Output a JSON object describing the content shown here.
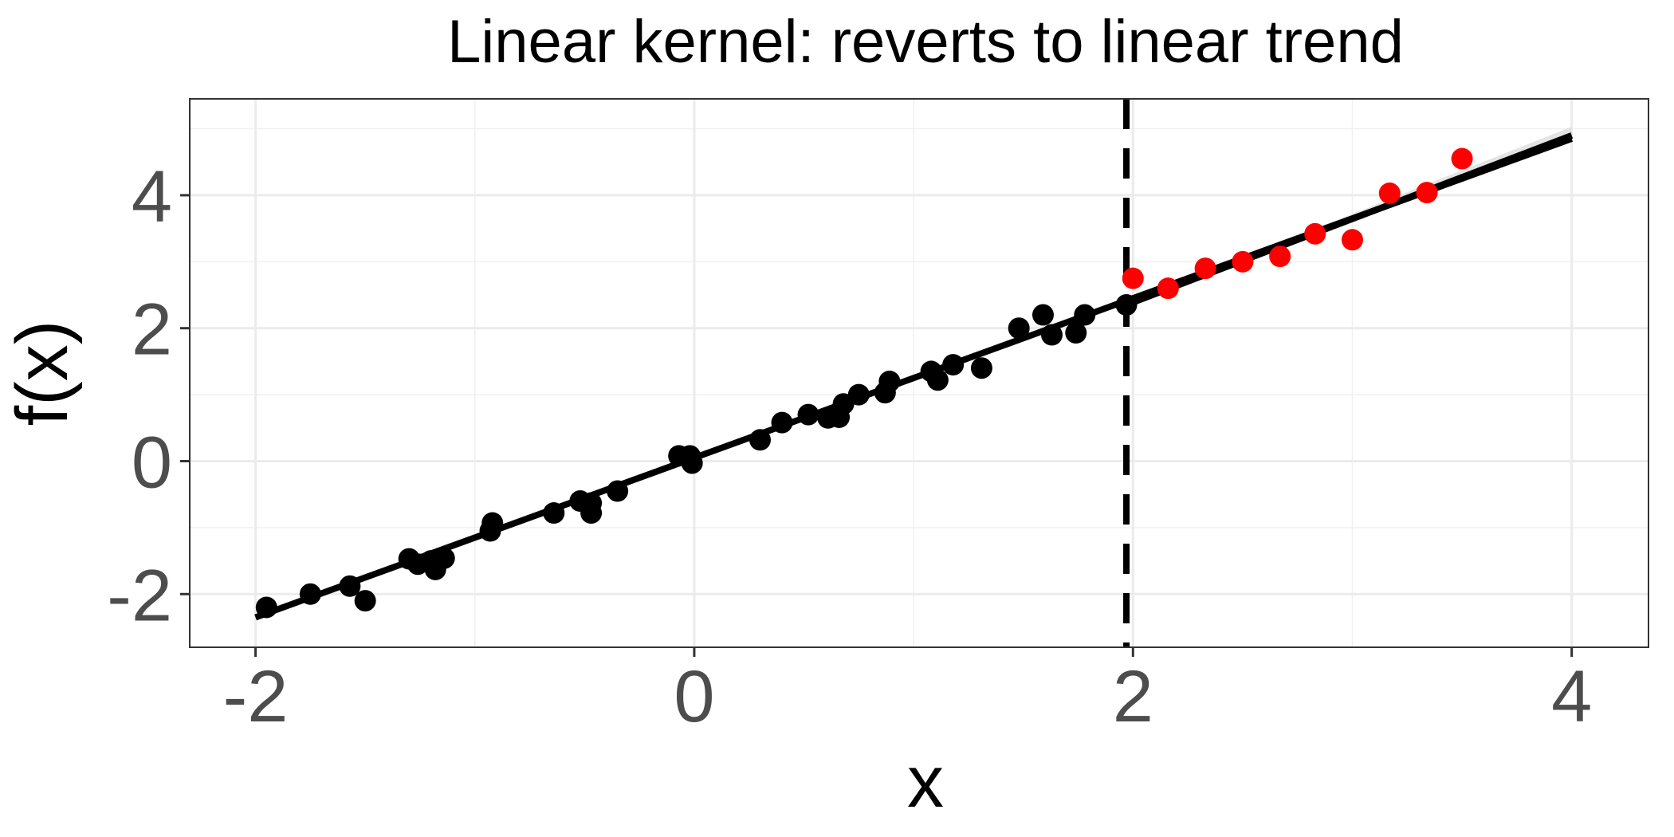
{
  "chart_data": {
    "type": "scatter",
    "title": "Linear kernel: reverts to linear trend",
    "xlabel": "x",
    "ylabel": "f(x)",
    "xlim": [
      -2.3,
      4.35
    ],
    "ylim": [
      -2.8,
      5.45
    ],
    "x_ticks": [
      -2,
      0,
      2,
      4
    ],
    "x_tick_labels": [
      "-2",
      "0",
      "2",
      "4"
    ],
    "y_ticks": [
      -2,
      0,
      2,
      4
    ],
    "y_tick_labels": [
      "-2",
      "0",
      "2",
      "4"
    ],
    "grid": true,
    "vline_x": 1.97,
    "series": [
      {
        "color": "#000000",
        "points": [
          [
            -1.95,
            -2.2
          ],
          [
            -1.75,
            -2.0
          ],
          [
            -1.57,
            -1.88
          ],
          [
            -1.5,
            -2.1
          ],
          [
            -1.3,
            -1.47
          ],
          [
            -1.26,
            -1.55
          ],
          [
            -1.2,
            -1.5
          ],
          [
            -1.18,
            -1.63
          ],
          [
            -1.14,
            -1.46
          ],
          [
            -0.93,
            -1.05
          ],
          [
            -0.92,
            -0.93
          ],
          [
            -0.64,
            -0.78
          ],
          [
            -0.52,
            -0.6
          ],
          [
            -0.47,
            -0.63
          ],
          [
            -0.47,
            -0.78
          ],
          [
            -0.35,
            -0.45
          ],
          [
            -0.07,
            0.08
          ],
          [
            -0.02,
            0.08
          ],
          [
            -0.01,
            -0.03
          ],
          [
            0.3,
            0.32
          ],
          [
            0.4,
            0.58
          ],
          [
            0.52,
            0.7
          ],
          [
            0.61,
            0.65
          ],
          [
            0.66,
            0.66
          ],
          [
            0.68,
            0.86
          ],
          [
            0.75,
            1.0
          ],
          [
            0.87,
            1.03
          ],
          [
            0.89,
            1.2
          ],
          [
            1.08,
            1.35
          ],
          [
            1.11,
            1.22
          ],
          [
            1.18,
            1.45
          ],
          [
            1.31,
            1.4
          ],
          [
            1.48,
            2.0
          ],
          [
            1.59,
            2.2
          ],
          [
            1.63,
            1.9
          ],
          [
            1.74,
            1.93
          ],
          [
            1.78,
            2.2
          ],
          [
            1.97,
            2.35
          ]
        ]
      },
      {
        "color": "#ff0000",
        "points": [
          [
            2.0,
            2.75
          ],
          [
            2.16,
            2.6
          ],
          [
            2.33,
            2.9
          ],
          [
            2.5,
            3.0
          ],
          [
            2.67,
            3.08
          ],
          [
            2.83,
            3.42
          ],
          [
            3.0,
            3.33
          ],
          [
            3.17,
            4.03
          ],
          [
            3.34,
            4.04
          ],
          [
            3.5,
            4.55
          ]
        ]
      }
    ],
    "lines": [
      {
        "name": "",
        "x": [
          -2,
          4
        ],
        "y": [
          -2.35,
          4.85
        ],
        "color": "#000000"
      },
      {
        "name": "",
        "x": [
          1.97,
          4
        ],
        "y": [
          2.35,
          4.9
        ],
        "color": "#000000"
      }
    ]
  }
}
